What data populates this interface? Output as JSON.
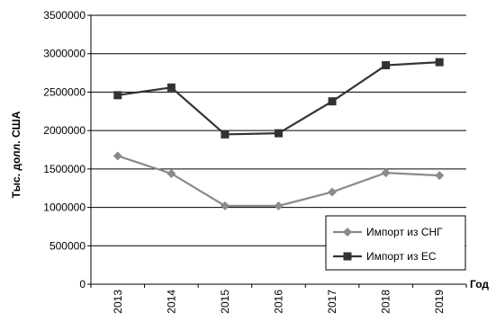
{
  "chart_data": {
    "type": "line",
    "title": "",
    "xlabel": "Год",
    "ylabel": "Тыс. долл. США",
    "categories": [
      "2013",
      "2014",
      "2015",
      "2016",
      "2017",
      "2018",
      "2019"
    ],
    "ylim": [
      0,
      3500000
    ],
    "yticks": [
      "0",
      "500000",
      "1000000",
      "1500000",
      "2000000",
      "2500000",
      "3000000",
      "3500000"
    ],
    "grid": true,
    "legend_position": "bottom-right",
    "series": [
      {
        "name": "Импорт из СНГ",
        "marker": "diamond",
        "color": "#8a8a8a",
        "values": [
          1670000,
          1440000,
          1020000,
          1020000,
          1200000,
          1450000,
          1415000
        ]
      },
      {
        "name": "Импорт из ЕС",
        "marker": "square",
        "color": "#333333",
        "values": [
          2460000,
          2560000,
          1950000,
          1965000,
          2380000,
          2850000,
          2890000
        ]
      }
    ]
  }
}
